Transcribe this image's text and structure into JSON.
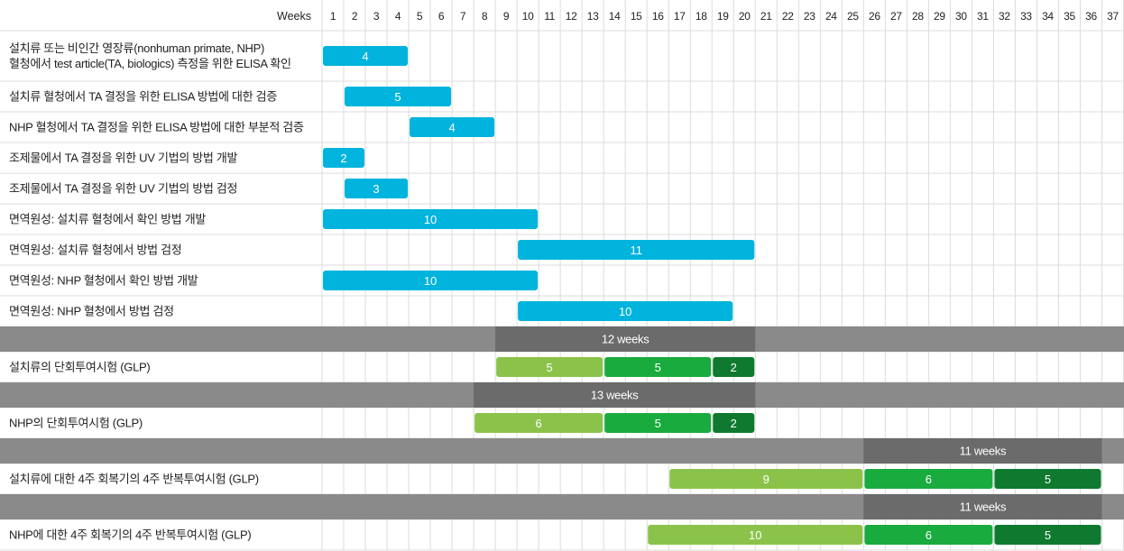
{
  "chart_data": {
    "type": "gantt",
    "x_axis_title": "Weeks",
    "weeks": [
      "1",
      "2",
      "3",
      "4",
      "5",
      "6",
      "7",
      "8",
      "9",
      "10",
      "11",
      "12",
      "13",
      "14",
      "15",
      "16",
      "17",
      "18",
      "19",
      "20",
      "21",
      "22",
      "23",
      "24",
      "25",
      "26",
      "27",
      "28",
      "29",
      "30",
      "31",
      "32",
      "33",
      "34",
      "35",
      "36",
      "37"
    ],
    "colors": {
      "blue": "#00b4dd",
      "light_green": "#8bc34a",
      "green": "#1aab3e",
      "dark_green": "#0f7a2f",
      "phase_band": "#8a8a8a",
      "phase_span": "#6b6b6b",
      "grid": "#dcdcdc"
    },
    "rows": [
      {
        "kind": "task",
        "label_lines": [
          "설치류 또는 비인간 영장류(nonhuman primate, NHP)",
          "혈청에서 test article(TA, biologics) 측정을 위한 ELISA 확인"
        ],
        "bars": [
          {
            "start": 1,
            "duration": 4,
            "label": "4",
            "color": "blue"
          }
        ]
      },
      {
        "kind": "task",
        "label_lines": [
          "설치류 혈청에서 TA 결정을 위한 ELISA 방법에 대한 검증"
        ],
        "bars": [
          {
            "start": 2,
            "duration": 5,
            "label": "5",
            "color": "blue"
          }
        ]
      },
      {
        "kind": "task",
        "label_lines": [
          "NHP 혈청에서 TA 결정을 위한 ELISA 방법에 대한 부분적 검증"
        ],
        "bars": [
          {
            "start": 5,
            "duration": 4,
            "label": "4",
            "color": "blue"
          }
        ]
      },
      {
        "kind": "task",
        "label_lines": [
          "조제물에서 TA 결정을 위한 UV 기법의 방법 개발"
        ],
        "bars": [
          {
            "start": 1,
            "duration": 2,
            "label": "2",
            "color": "blue"
          }
        ]
      },
      {
        "kind": "task",
        "label_lines": [
          "조제물에서 TA 결정을 위한 UV 기법의 방법 검정"
        ],
        "bars": [
          {
            "start": 2,
            "duration": 3,
            "label": "3",
            "color": "blue"
          }
        ]
      },
      {
        "kind": "task",
        "label_lines": [
          "면역원성: 설치류 혈청에서 확인 방법 개발"
        ],
        "bars": [
          {
            "start": 1,
            "duration": 10,
            "label": "10",
            "color": "blue"
          }
        ]
      },
      {
        "kind": "task",
        "label_lines": [
          "면역원성: 설치류 혈청에서 방법 검정"
        ],
        "bars": [
          {
            "start": 10,
            "duration": 11,
            "label": "11",
            "color": "blue"
          }
        ]
      },
      {
        "kind": "task",
        "label_lines": [
          "면역원성: NHP 혈청에서 확인 방법 개발"
        ],
        "bars": [
          {
            "start": 1,
            "duration": 10,
            "label": "10",
            "color": "blue"
          }
        ]
      },
      {
        "kind": "task",
        "label_lines": [
          "면역원성: NHP 혈청에서 방법 검정"
        ],
        "bars": [
          {
            "start": 10,
            "duration": 10,
            "label": "10",
            "color": "blue"
          }
        ]
      },
      {
        "kind": "phase",
        "start": 9,
        "duration": 12,
        "label": "12 weeks"
      },
      {
        "kind": "task",
        "label_lines": [
          "설치류의 단회투여시험 (GLP)"
        ],
        "bars": [
          {
            "start": 9,
            "duration": 5,
            "label": "5",
            "color": "light_green"
          },
          {
            "start": 14,
            "duration": 5,
            "label": "5",
            "color": "green"
          },
          {
            "start": 19,
            "duration": 2,
            "label": "2",
            "color": "dark_green"
          }
        ]
      },
      {
        "kind": "phase",
        "start": 8,
        "duration": 13,
        "label": "13 weeks"
      },
      {
        "kind": "task",
        "label_lines": [
          "NHP의 단회투여시험 (GLP)"
        ],
        "bars": [
          {
            "start": 8,
            "duration": 6,
            "label": "6",
            "color": "light_green"
          },
          {
            "start": 14,
            "duration": 5,
            "label": "5",
            "color": "green"
          },
          {
            "start": 19,
            "duration": 2,
            "label": "2",
            "color": "dark_green"
          }
        ]
      },
      {
        "kind": "phase",
        "start": 26,
        "duration": 11,
        "label": "11 weeks"
      },
      {
        "kind": "task",
        "label_lines": [
          "설치류에 대한 4주 회복기의 4주 반복투여시험 (GLP)"
        ],
        "bars": [
          {
            "start": 17,
            "duration": 9,
            "label": "9",
            "color": "light_green"
          },
          {
            "start": 26,
            "duration": 6,
            "label": "6",
            "color": "green"
          },
          {
            "start": 32,
            "duration": 5,
            "label": "5",
            "color": "dark_green"
          }
        ]
      },
      {
        "kind": "phase",
        "start": 26,
        "duration": 11,
        "label": "11 weeks"
      },
      {
        "kind": "task",
        "label_lines": [
          "NHP에 대한 4주 회복기의 4주 반복투여시험 (GLP)"
        ],
        "bars": [
          {
            "start": 16,
            "duration": 10,
            "label": "10",
            "color": "light_green"
          },
          {
            "start": 26,
            "duration": 6,
            "label": "6",
            "color": "green"
          },
          {
            "start": 32,
            "duration": 5,
            "label": "5",
            "color": "dark_green"
          }
        ]
      }
    ]
  }
}
